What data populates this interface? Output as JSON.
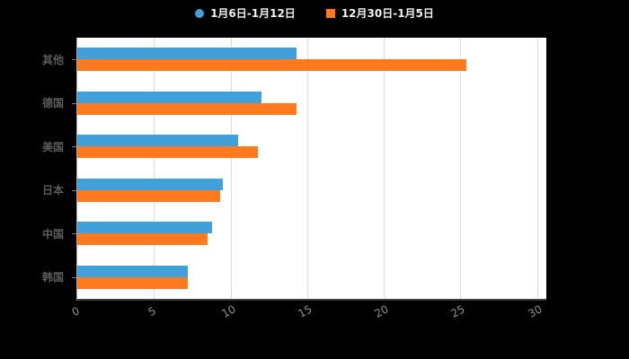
{
  "legend": {
    "items": [
      {
        "label": "1月6日-1月12日",
        "marker": "circle"
      },
      {
        "label": "12月30日-1月5日",
        "marker": "square"
      }
    ]
  },
  "chart_data": {
    "type": "bar",
    "orientation": "horizontal",
    "title": "",
    "categories": [
      "其他",
      "德国",
      "美国",
      "日本",
      "中国",
      "韩国"
    ],
    "series": [
      {
        "name": "1月6日-1月12日",
        "color": "#41a0d9",
        "values": [
          14.3,
          12.0,
          10.5,
          9.5,
          8.8,
          7.2
        ]
      },
      {
        "name": "12月30日-1月5日",
        "color": "#ff7a1f",
        "values": [
          25.4,
          14.3,
          11.8,
          9.3,
          8.5,
          7.2
        ]
      }
    ],
    "xlim": [
      0,
      30.6
    ],
    "xticks": [
      0,
      5,
      10,
      15,
      20,
      25,
      30
    ],
    "grid": true,
    "legend_position": "top",
    "plot_bg": "#ffffff",
    "page_bg": "#000000"
  }
}
